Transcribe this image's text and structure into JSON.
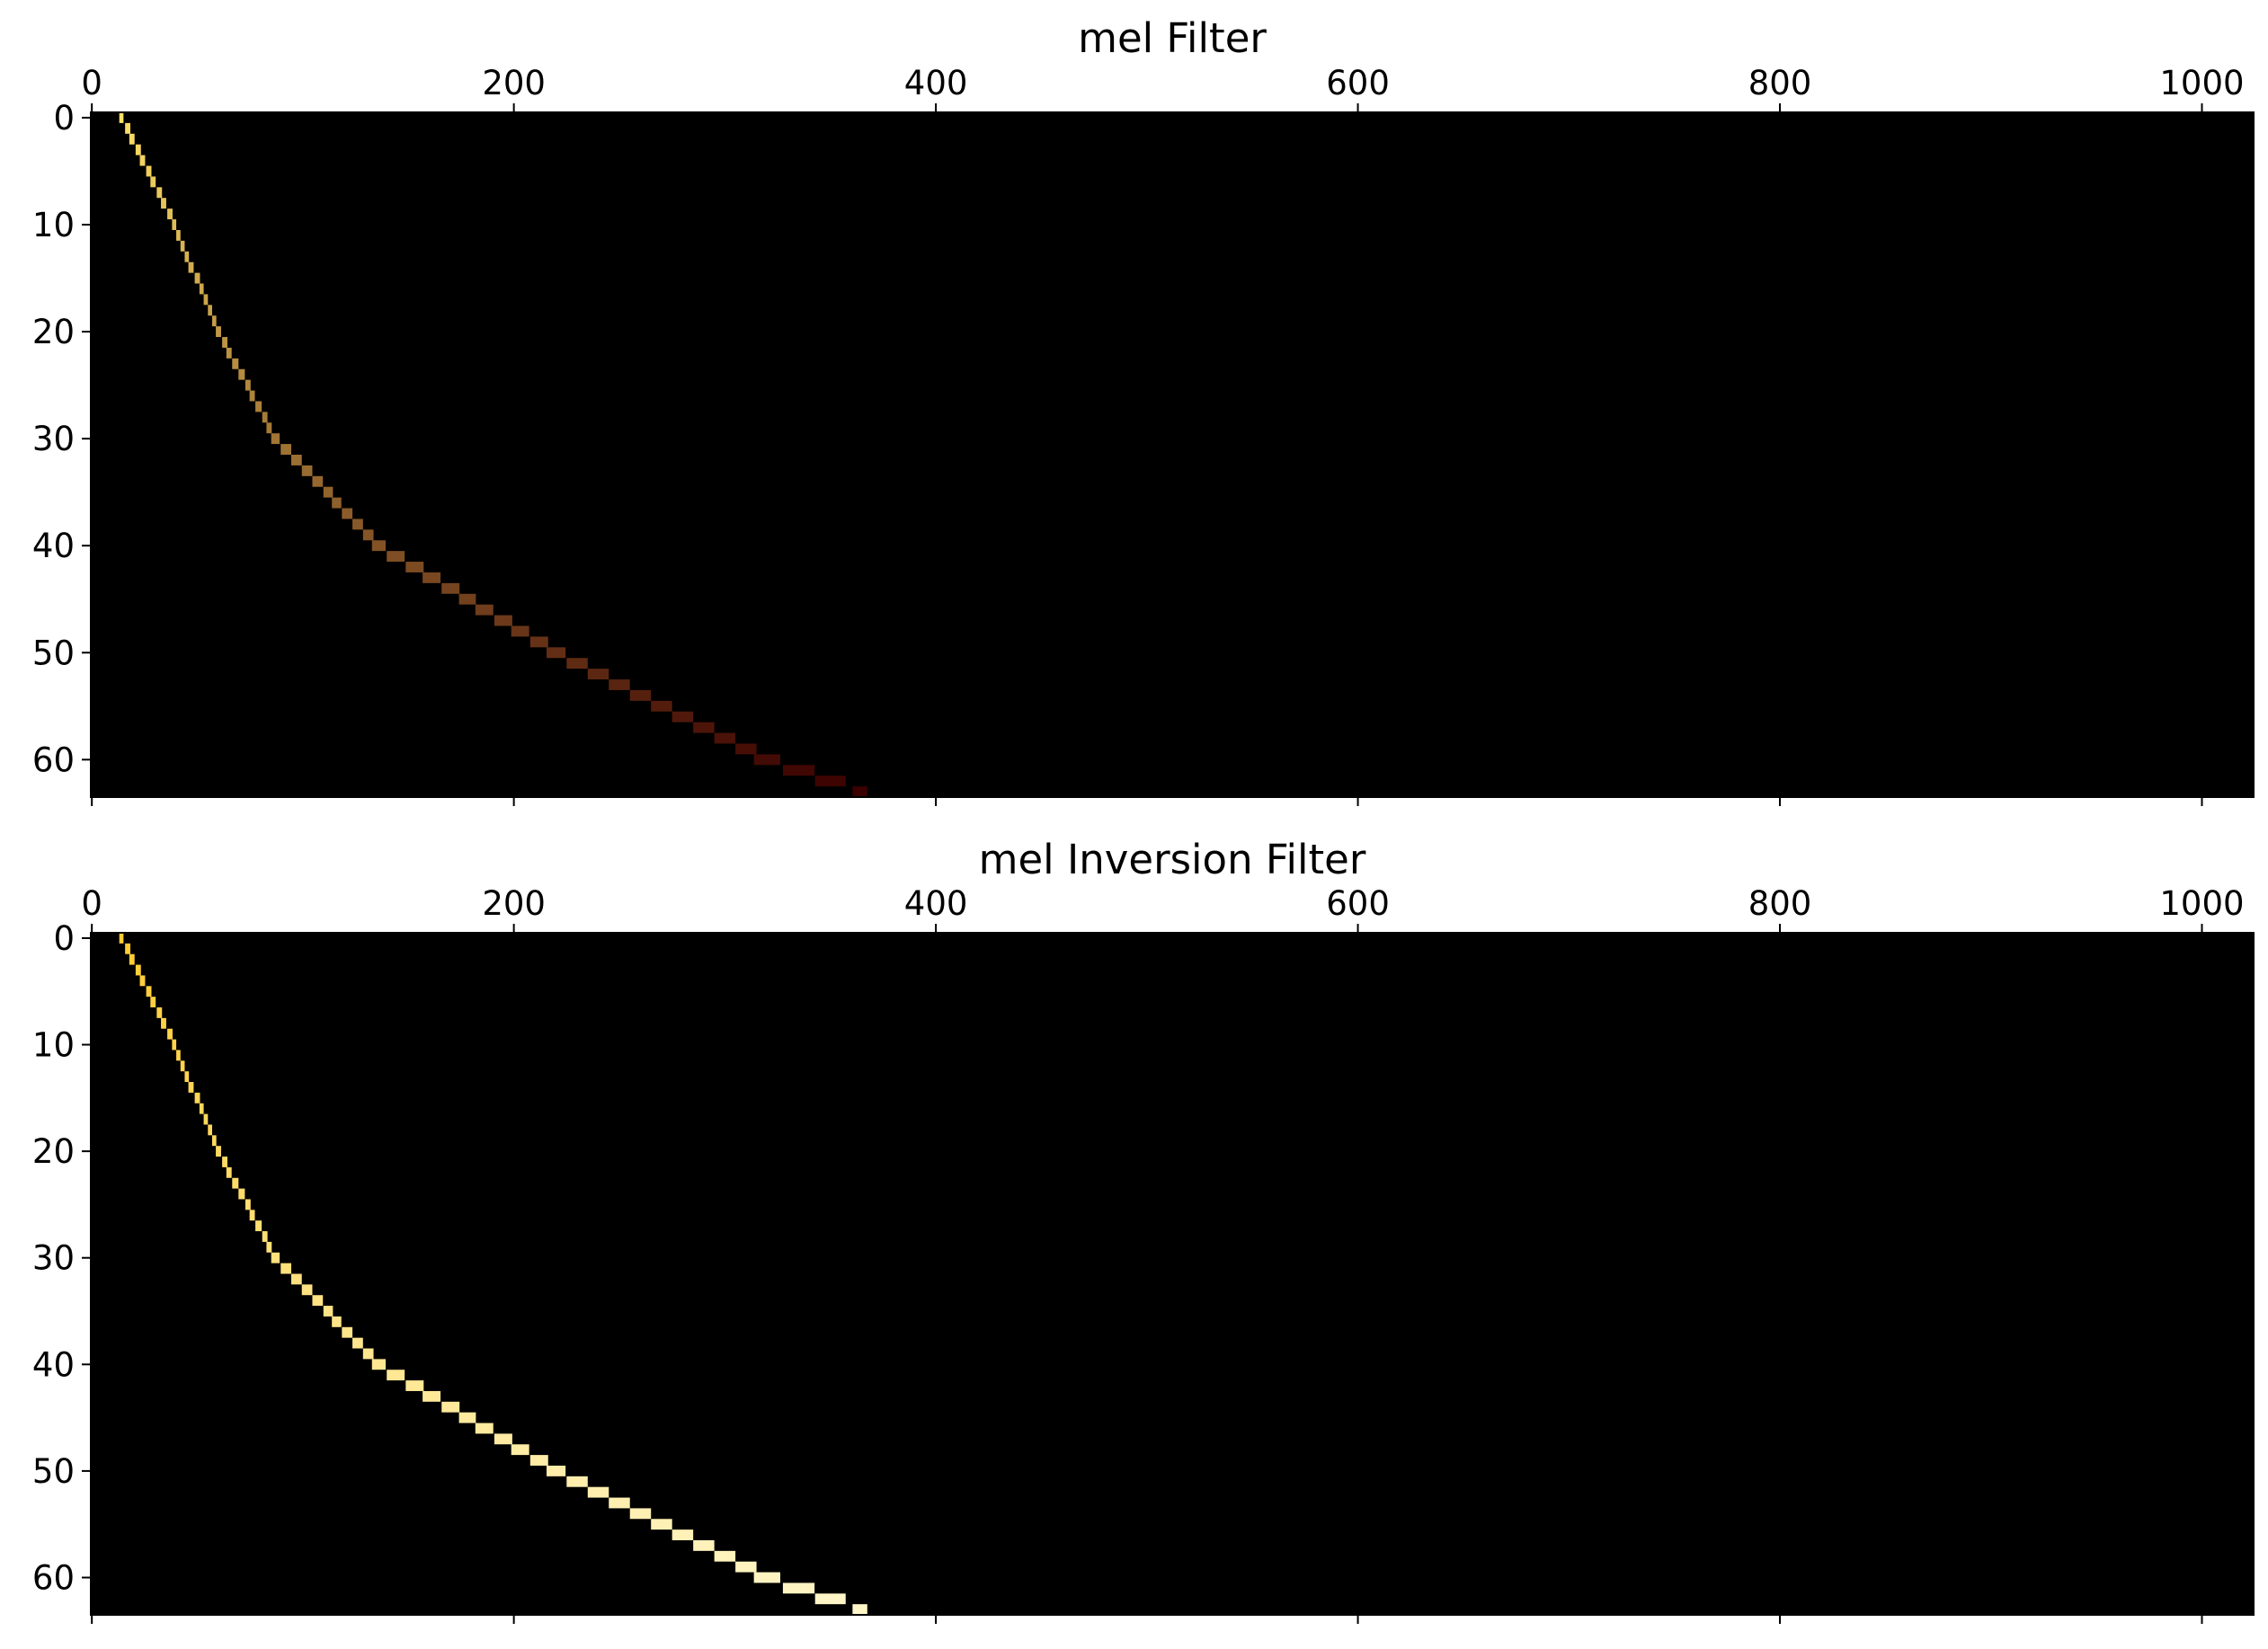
{
  "chart_data": [
    {
      "type": "heatmap",
      "title": "mel Filter",
      "x": [
        14,
        17,
        19,
        22,
        24,
        27,
        29,
        32,
        34,
        37,
        39,
        41,
        43,
        45,
        47,
        50,
        52,
        54,
        56,
        58,
        60,
        63,
        65,
        68,
        71,
        74,
        76,
        79,
        82,
        84,
        87,
        92,
        97,
        102,
        107,
        112,
        116,
        121,
        126,
        131,
        136,
        144,
        153,
        161,
        170,
        178,
        186,
        195,
        203,
        212,
        220,
        230,
        240,
        250,
        260,
        270,
        280,
        290,
        300,
        310,
        320,
        335,
        350,
        364
      ],
      "rows": [
        0,
        1,
        2,
        3,
        4,
        5,
        6,
        7,
        8,
        9,
        10,
        11,
        12,
        13,
        14,
        15,
        16,
        17,
        18,
        19,
        20,
        21,
        22,
        23,
        24,
        25,
        26,
        27,
        28,
        29,
        30,
        31,
        32,
        33,
        34,
        35,
        36,
        37,
        38,
        39,
        40,
        41,
        42,
        43,
        44,
        45,
        46,
        47,
        48,
        49,
        50,
        51,
        52,
        53,
        54,
        55,
        56,
        57,
        58,
        59,
        60,
        61,
        62,
        63
      ],
      "colors": [
        "#ffe066",
        "#3a0000"
      ],
      "background": "#000000",
      "xlim": [
        -0.5,
        1024.5
      ],
      "ylim": [
        63.5,
        -0.5
      ],
      "xticks": [
        0,
        200,
        400,
        600,
        800,
        1000
      ],
      "yticks": [
        0,
        10,
        20,
        30,
        40,
        50,
        60
      ]
    },
    {
      "type": "heatmap",
      "title": "mel Inversion Filter",
      "x": [
        14,
        17,
        19,
        22,
        24,
        27,
        29,
        32,
        34,
        37,
        39,
        41,
        43,
        45,
        47,
        50,
        52,
        54,
        56,
        58,
        60,
        63,
        65,
        68,
        71,
        74,
        76,
        79,
        82,
        84,
        87,
        92,
        97,
        102,
        107,
        112,
        116,
        121,
        126,
        131,
        136,
        144,
        153,
        161,
        170,
        178,
        186,
        195,
        203,
        212,
        220,
        230,
        240,
        250,
        260,
        270,
        280,
        290,
        300,
        310,
        320,
        335,
        350,
        364
      ],
      "rows": [
        0,
        1,
        2,
        3,
        4,
        5,
        6,
        7,
        8,
        9,
        10,
        11,
        12,
        13,
        14,
        15,
        16,
        17,
        18,
        19,
        20,
        21,
        22,
        23,
        24,
        25,
        26,
        27,
        28,
        29,
        30,
        31,
        32,
        33,
        34,
        35,
        36,
        37,
        38,
        39,
        40,
        41,
        42,
        43,
        44,
        45,
        46,
        47,
        48,
        49,
        50,
        51,
        52,
        53,
        54,
        55,
        56,
        57,
        58,
        59,
        60,
        61,
        62,
        63
      ],
      "colors": [
        "#ffcc33",
        "#fff6c8"
      ],
      "background": "#000000",
      "xlim": [
        -0.5,
        1024.5
      ],
      "ylim": [
        63.5,
        -0.5
      ],
      "xticks": [
        0,
        200,
        400,
        600,
        800,
        1000
      ],
      "yticks": [
        0,
        10,
        20,
        30,
        40,
        50,
        60
      ]
    }
  ]
}
